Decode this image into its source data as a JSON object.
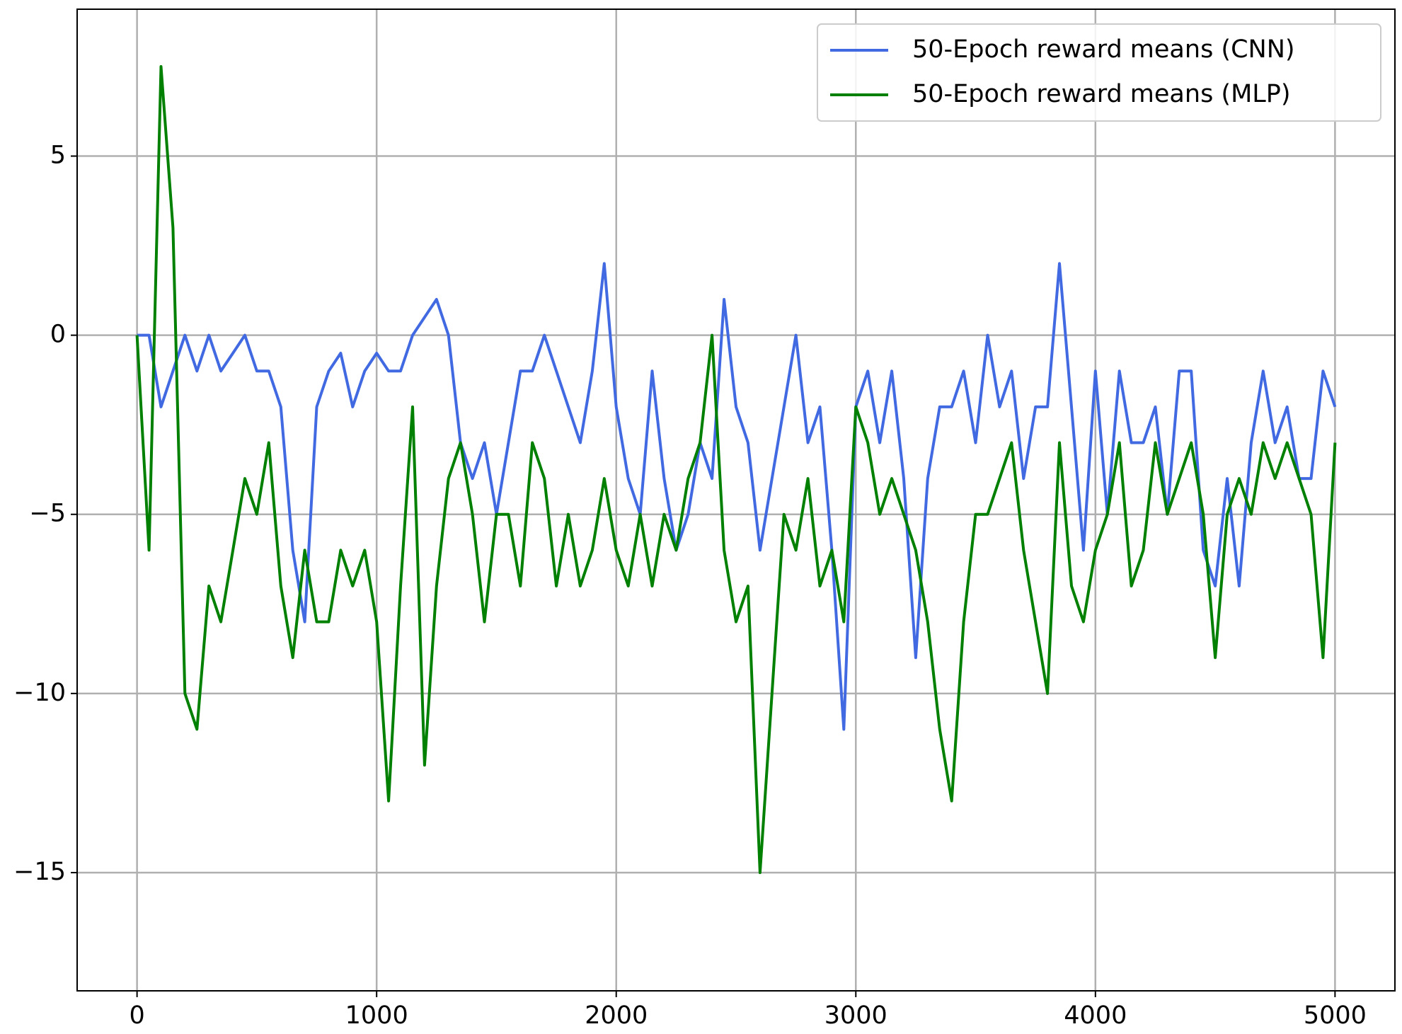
{
  "chart_data": {
    "type": "line",
    "x": [
      0,
      50,
      100,
      150,
      200,
      250,
      300,
      350,
      400,
      450,
      500,
      550,
      600,
      650,
      700,
      750,
      800,
      850,
      900,
      950,
      1000,
      1050,
      1100,
      1150,
      1200,
      1250,
      1300,
      1350,
      1400,
      1450,
      1500,
      1550,
      1600,
      1650,
      1700,
      1750,
      1800,
      1850,
      1900,
      1950,
      2000,
      2050,
      2100,
      2150,
      2200,
      2250,
      2300,
      2350,
      2400,
      2450,
      2500,
      2550,
      2600,
      2650,
      2700,
      2750,
      2800,
      2850,
      2900,
      2950,
      3000,
      3050,
      3100,
      3150,
      3200,
      3250,
      3300,
      3350,
      3400,
      3450,
      3500,
      3550,
      3600,
      3650,
      3700,
      3750,
      3800,
      3850,
      3900,
      3950,
      4000,
      4050,
      4100,
      4150,
      4200,
      4250,
      4300,
      4350,
      4400,
      4450,
      4500,
      4550,
      4600,
      4650,
      4700,
      4750,
      4800,
      4850,
      4900,
      4950,
      5000
    ],
    "series": [
      {
        "name": "50-Epoch reward means (CNN)",
        "color": "#4169e1",
        "values": [
          0,
          0,
          -2,
          -1,
          0,
          -1,
          0,
          -1,
          -0.5,
          0,
          -1,
          -1,
          -2,
          -6,
          -8,
          -2,
          -1,
          -0.5,
          -2,
          -1,
          -0.5,
          -1,
          -1,
          0,
          0.5,
          1,
          0,
          -3,
          -4,
          -3,
          -5,
          -3,
          -1,
          -1,
          0,
          -1,
          -2,
          -3,
          -1,
          2,
          -2,
          -4,
          -5,
          -1,
          -4,
          -6,
          -5,
          -3,
          -4,
          1,
          -2,
          -3,
          -6,
          -4,
          -2,
          0,
          -3,
          -2,
          -6,
          -11,
          -2,
          -1,
          -3,
          -1,
          -4,
          -9,
          -4,
          -2,
          -2,
          -1,
          -3,
          0,
          -2,
          -1,
          -4,
          -2,
          -2,
          2,
          -2,
          -6,
          -1,
          -5,
          -1,
          -3,
          -3,
          -2,
          -5,
          -1,
          -1,
          -6,
          -7,
          -4,
          -7,
          -3,
          -1,
          -3,
          -2,
          -4,
          -4,
          -1,
          -2
        ]
      },
      {
        "name": "50-Epoch reward means (MLP)",
        "color": "#008000",
        "values": [
          0,
          -6,
          7.5,
          3,
          -10,
          -11,
          -7,
          -8,
          -6,
          -4,
          -5,
          -3,
          -7,
          -9,
          -6,
          -8,
          -8,
          -6,
          -7,
          -6,
          -8,
          -13,
          -7,
          -2,
          -12,
          -7,
          -4,
          -3,
          -5,
          -8,
          -5,
          -5,
          -7,
          -3,
          -4,
          -7,
          -5,
          -7,
          -6,
          -4,
          -6,
          -7,
          -5,
          -7,
          -5,
          -6,
          -4,
          -3,
          0,
          -6,
          -8,
          -7,
          -15,
          -10,
          -5,
          -6,
          -4,
          -7,
          -6,
          -8,
          -2,
          -3,
          -5,
          -4,
          -5,
          -6,
          -8,
          -11,
          -13,
          -8,
          -5,
          -5,
          -4,
          -3,
          -6,
          -8,
          -10,
          -3,
          -7,
          -8,
          -6,
          -5,
          -3,
          -7,
          -6,
          -3,
          -5,
          -4,
          -3,
          -5,
          -9,
          -5,
          -4,
          -5,
          -3,
          -4,
          -3,
          -4,
          -5,
          -9,
          -3
        ]
      }
    ],
    "xlim": [
      -250,
      5250
    ],
    "xticks": [
      0,
      1000,
      2000,
      3000,
      4000,
      5000
    ],
    "ylim": [
      -18.3,
      9.1
    ],
    "yticks": [
      {
        "value": -15,
        "label": "−15"
      },
      {
        "value": -10,
        "label": "−10"
      },
      {
        "value": -5,
        "label": "−5"
      },
      0,
      5
    ],
    "grid": true,
    "legend": "upper right"
  }
}
